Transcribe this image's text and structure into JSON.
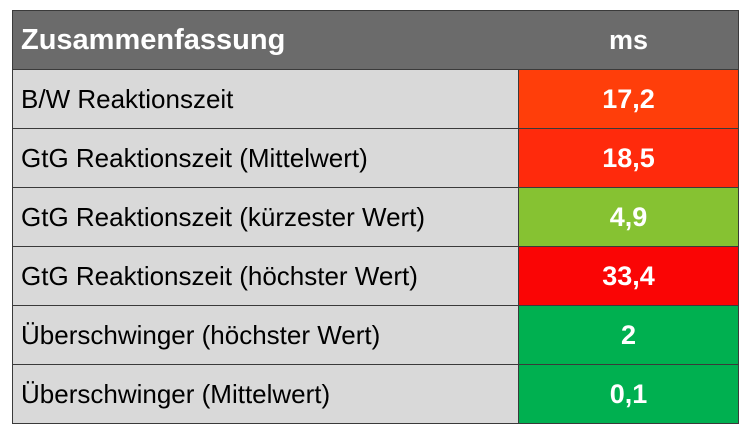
{
  "table": {
    "header": {
      "label": "Zusammenfassung",
      "unit": "ms"
    },
    "rows": [
      {
        "label": "B/W Reaktionszeit",
        "value": "17,2",
        "color": "#ff3e0a"
      },
      {
        "label": "GtG Reaktionszeit (Mittelwert)",
        "value": "18,5",
        "color": "#ff2a0c"
      },
      {
        "label": "GtG Reaktionszeit (kürzester Wert)",
        "value": "4,9",
        "color": "#86c232"
      },
      {
        "label": "GtG Reaktionszeit (höchster Wert)",
        "value": "33,4",
        "color": "#fa0505"
      },
      {
        "label": "Überschwinger (höchster Wert)",
        "value": "2",
        "color": "#00b050"
      },
      {
        "label": "Überschwinger (Mittelwert)",
        "value": "0,1",
        "color": "#00b050"
      }
    ]
  }
}
